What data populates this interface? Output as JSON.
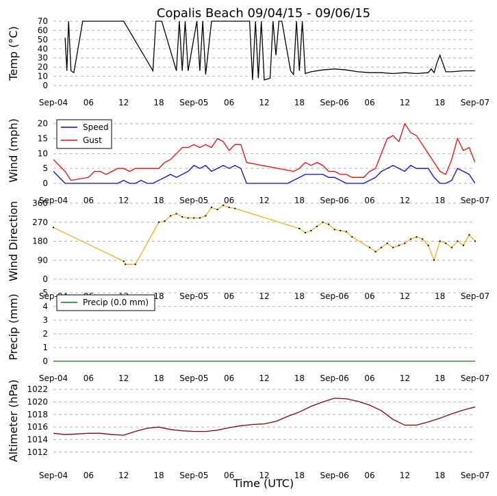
{
  "chart_data": [
    {
      "type": "line",
      "title": "Copalis Beach 09/04/15 - 09/06/15",
      "ylabel": "Temp ($^\\circ$C)",
      "ylabel_display": "Temp (°C)",
      "ylim": [
        0,
        70
      ],
      "yticks": [
        0,
        10,
        20,
        30,
        40,
        50,
        60,
        70
      ],
      "xlim_hours": [
        0,
        72
      ],
      "xtick_hours": [
        0,
        6,
        12,
        18,
        24,
        30,
        36,
        42,
        48,
        54,
        60,
        66,
        72
      ],
      "xtick_labels": [
        "Sep-04",
        "06",
        "12",
        "18",
        "Sep-05",
        "06",
        "12",
        "18",
        "Sep-06",
        "06",
        "12",
        "18",
        "Sep-07"
      ],
      "grid": "horizontal-dashed",
      "series": [
        {
          "name": "Temp",
          "color": "#000000",
          "x": [
            2.0,
            2.3,
            2.6,
            3.0,
            3.5,
            5.0,
            6.0,
            8.0,
            10.0,
            12.0,
            17.0,
            17.5,
            18.5,
            21.0,
            21.5,
            22.0,
            22.5,
            23.0,
            24.5,
            25.0,
            25.5,
            26.0,
            27.0,
            30.0,
            33.5,
            34.0,
            34.5,
            35.0,
            35.5,
            36.0,
            37.0,
            37.5,
            38.0,
            38.5,
            39.0,
            40.5,
            41.0,
            41.5,
            42.0,
            42.5,
            43.0,
            44.0,
            46.0,
            48.0,
            50.0,
            52.0,
            54.0,
            56.0,
            58.0,
            60.0,
            62.0,
            64.0,
            64.5,
            65.0,
            65.5,
            66.0,
            67.0,
            68.0,
            70.0,
            72.0
          ],
          "y": [
            52,
            16,
            70,
            16,
            14,
            70,
            70,
            70,
            70,
            70,
            16,
            70,
            70,
            16,
            70,
            16,
            70,
            16,
            70,
            16,
            70,
            12,
            70,
            70,
            70,
            6,
            70,
            8,
            70,
            6,
            8,
            70,
            33,
            70,
            70,
            16,
            12,
            70,
            16,
            70,
            13,
            15,
            17,
            18,
            17,
            15,
            14,
            14,
            13,
            14,
            13,
            14,
            18,
            14,
            25,
            33,
            15,
            15,
            16,
            16
          ],
          "legend": false
        }
      ]
    },
    {
      "type": "line",
      "ylabel": "Wind (mph)",
      "ylim": [
        0,
        22
      ],
      "yticks": [
        0,
        5,
        10,
        15,
        20
      ],
      "legend_location": "upper-left",
      "xtick_labels": [
        "Sep-04",
        "06",
        "12",
        "18",
        "Sep-05",
        "06",
        "12",
        "18",
        "Sep-06",
        "06",
        "12",
        "18",
        "Sep-07"
      ],
      "grid": "horizontal-dashed",
      "series": [
        {
          "name": "Speed",
          "color": "#0000ff",
          "x": [
            0,
            1,
            2,
            3,
            6,
            9,
            11,
            12,
            13,
            14,
            15,
            16,
            17,
            18,
            19,
            20,
            21,
            22,
            23,
            24,
            25,
            26,
            27,
            28,
            29,
            30,
            31,
            32,
            33,
            36,
            40,
            41,
            42,
            43,
            44,
            45,
            46,
            47,
            48,
            49,
            50,
            51,
            52,
            53,
            54,
            55,
            56,
            57,
            58,
            59,
            60,
            61,
            62,
            63,
            64,
            65,
            66,
            67,
            68,
            69,
            70,
            71,
            72
          ],
          "y": [
            4,
            2,
            0,
            0,
            0,
            0,
            0,
            1,
            0,
            0,
            1,
            0,
            0,
            1,
            2,
            3,
            2,
            3,
            4,
            6,
            5,
            6,
            4,
            5,
            6,
            5,
            6,
            5,
            0,
            0,
            0,
            1,
            2,
            3,
            3,
            3,
            3,
            2,
            2,
            1,
            0,
            0,
            0,
            0,
            1,
            2,
            4,
            5,
            6,
            5,
            4,
            6,
            5,
            5,
            5,
            2,
            0,
            0,
            1,
            5,
            4,
            3,
            0
          ],
          "legend": true
        },
        {
          "name": "Gust",
          "color": "#ff0000",
          "x": [
            0,
            1,
            2,
            3,
            6,
            7,
            8,
            9,
            10,
            11,
            12,
            13,
            14,
            15,
            18,
            19,
            20,
            21,
            22,
            23,
            24,
            25,
            26,
            27,
            28,
            29,
            30,
            31,
            32,
            33,
            41,
            42,
            43,
            44,
            45,
            46,
            47,
            48,
            49,
            50,
            51,
            53,
            54,
            55,
            56,
            57,
            58,
            59,
            60,
            61,
            62,
            63,
            64,
            66,
            67,
            68,
            69,
            70,
            71,
            72
          ],
          "y": [
            8,
            6,
            4,
            1,
            2,
            4,
            4,
            3,
            4,
            5,
            5,
            4,
            5,
            5,
            5,
            7,
            8,
            10,
            12,
            12,
            13,
            12,
            13,
            12,
            15,
            14,
            11,
            13,
            13,
            7,
            4,
            5,
            7,
            6,
            7,
            6,
            4,
            4,
            3,
            3,
            2,
            2,
            4,
            5,
            10,
            15,
            16,
            14,
            20,
            17,
            16,
            13,
            10,
            4,
            3,
            8,
            15,
            11,
            12,
            7
          ],
          "legend": true
        }
      ]
    },
    {
      "type": "scatter",
      "ylabel": "Wind Direction",
      "ylim": [
        0,
        360
      ],
      "yticks": [
        0,
        90,
        180,
        270,
        360
      ],
      "xtick_labels": [
        "Sep-04",
        "06",
        "12",
        "18",
        "Sep-05",
        "06",
        "12",
        "18",
        "Sep-06",
        "06",
        "12",
        "18",
        "Sep-07"
      ],
      "grid": "horizontal-dashed",
      "series": [
        {
          "name": "Direction",
          "color": "#ffa500",
          "marker_color": "#000000",
          "x": [
            0,
            12,
            12.3,
            14,
            18,
            19,
            20,
            21,
            22,
            23,
            24,
            25,
            26,
            27,
            28,
            29,
            30,
            31,
            42,
            43,
            44,
            45,
            46,
            47,
            48,
            49,
            50,
            51,
            54,
            55,
            56,
            57,
            58,
            59,
            60,
            61,
            62,
            63,
            64,
            65,
            66,
            67,
            68,
            69,
            70,
            71,
            72
          ],
          "y": [
            245,
            85,
            70,
            70,
            270,
            275,
            300,
            310,
            295,
            290,
            290,
            290,
            300,
            340,
            330,
            350,
            340,
            335,
            240,
            220,
            230,
            250,
            270,
            260,
            235,
            230,
            225,
            200,
            150,
            130,
            150,
            170,
            150,
            160,
            170,
            190,
            200,
            190,
            160,
            90,
            180,
            170,
            150,
            180,
            160,
            210,
            180
          ],
          "legend": false
        }
      ]
    },
    {
      "type": "line",
      "ylabel": "Precip (mm)",
      "ylim": [
        0,
        5
      ],
      "yticks": [
        0,
        1,
        2,
        3,
        4,
        5
      ],
      "legend_location": "upper-left",
      "xtick_labels": [
        "Sep-04",
        "06",
        "12",
        "18",
        "Sep-05",
        "06",
        "12",
        "18",
        "Sep-06",
        "06",
        "12",
        "18",
        "Sep-07"
      ],
      "grid": "horizontal-dashed",
      "series": [
        {
          "name": "Precip (0.0 mm)",
          "color": "#008000",
          "x": [
            0,
            72
          ],
          "y": [
            0,
            0
          ],
          "legend": true
        }
      ]
    },
    {
      "type": "line",
      "ylabel": "Altimeter (hPa)",
      "ylim": [
        1011,
        1023
      ],
      "yticks": [
        1012,
        1014,
        1016,
        1018,
        1020,
        1022
      ],
      "xlabel": "Time (UTC)",
      "xtick_labels": [
        "Sep-04",
        "06",
        "12",
        "18",
        "Sep-05",
        "06",
        "12",
        "18",
        "Sep-06",
        "06",
        "12",
        "18",
        "Sep-07"
      ],
      "grid": "horizontal-dashed",
      "series": [
        {
          "name": "Altimeter",
          "color": "#8b0000",
          "x": [
            0,
            2,
            4,
            6,
            8,
            10,
            12,
            14,
            16,
            18,
            20,
            22,
            24,
            26,
            28,
            30,
            32,
            34,
            36,
            38,
            40,
            42,
            44,
            46,
            48,
            50,
            52,
            54,
            56,
            58,
            60,
            62,
            64,
            66,
            68,
            70,
            72
          ],
          "y": [
            1015,
            1014.8,
            1014.9,
            1015,
            1015,
            1014.8,
            1014.7,
            1015.3,
            1015.8,
            1016,
            1015.6,
            1015.4,
            1015.3,
            1015.3,
            1015.5,
            1015.9,
            1016.2,
            1016.4,
            1016.5,
            1016.9,
            1017.7,
            1018.4,
            1019.3,
            1020,
            1020.6,
            1020.5,
            1020.1,
            1019.5,
            1018.6,
            1017.2,
            1016.3,
            1016.3,
            1016.8,
            1017.4,
            1018.1,
            1018.7,
            1019.2
          ],
          "legend": false
        }
      ]
    }
  ]
}
